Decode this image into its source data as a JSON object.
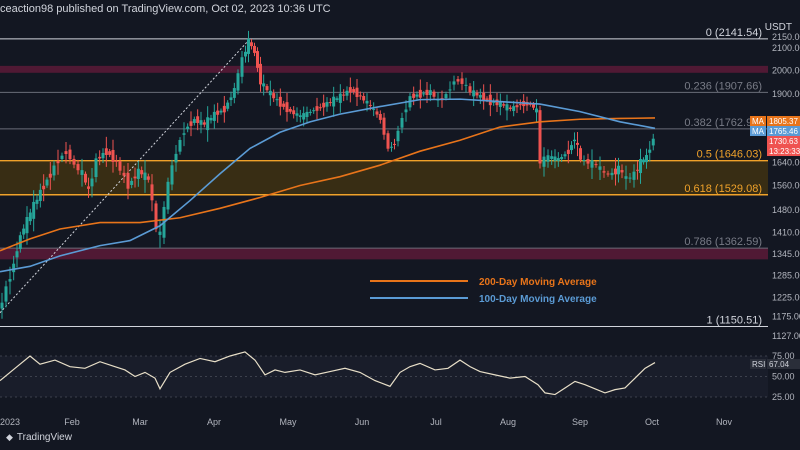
{
  "header": {
    "publisher": "ceaction98 published on TradingView.com, Oct 02, 2023 10:36 UTC"
  },
  "branding": {
    "name": "TradingView",
    "icon": "tradingview-logo-icon"
  },
  "currency": "USDT",
  "colors": {
    "background": "#131722",
    "candle_up": "#26a69a",
    "candle_down": "#ef5350",
    "ma200": "#e8741a",
    "ma100": "#5b9bd5",
    "fib_text": "#787b86",
    "resistance_zone": "#5c1a37",
    "support_zone": "#3f3112",
    "fib_orange": "#f0a22a",
    "rsi_line": "#e8dfc8"
  },
  "chart_data": {
    "type": "candlestick",
    "title": "",
    "xlabel": "",
    "ylabel": "",
    "ylim": [
      1100,
      2200
    ],
    "y_ticks": [
      "2150.00",
      "2100.00",
      "2000.00",
      "1900.00",
      "1805.37",
      "1765.46",
      "1730.63",
      "1640.00",
      "1560.00",
      "1480.00",
      "1410.00",
      "1345.00",
      "1285.00",
      "1225.00",
      "1175.00",
      "1127.00"
    ],
    "x_ticks": [
      "2023",
      "Feb",
      "Mar",
      "Apr",
      "May",
      "Jun",
      "Jul",
      "Aug",
      "Sep",
      "Oct",
      "Nov"
    ],
    "fib_levels": [
      {
        "ratio": "0",
        "price": 2141.54,
        "label": "0 (2141.54)"
      },
      {
        "ratio": "0.236",
        "price": 1907.66,
        "label": "0.236 (1907.66)"
      },
      {
        "ratio": "0.382",
        "price": 1762.97,
        "label": "0.382 (1762.97)"
      },
      {
        "ratio": "0.5",
        "price": 1646.03,
        "label": "0.5 (1646.03)"
      },
      {
        "ratio": "0.618",
        "price": 1529.08,
        "label": "0.618 (1529.08)"
      },
      {
        "ratio": "0.786",
        "price": 1362.59,
        "label": "0.786 (1362.59)"
      },
      {
        "ratio": "1",
        "price": 1150.51,
        "label": "1 (1150.51)"
      }
    ],
    "zones": [
      {
        "name": "resistance",
        "from": 1990,
        "to": 2020
      },
      {
        "name": "support",
        "from": 1529.08,
        "to": 1646.03
      },
      {
        "name": "lower",
        "from": 1330,
        "to": 1362.59
      }
    ],
    "price_badges": [
      {
        "tag": "MA",
        "value": "1805.37",
        "color": "#e8741a"
      },
      {
        "tag": "MA",
        "value": "1765.46",
        "color": "#5b9bd5"
      },
      {
        "tag": "",
        "value": "1730.63",
        "color": "#ef5350"
      },
      {
        "tag": "",
        "value": "13:23:33",
        "color": "#ef5350"
      }
    ],
    "legend": [
      {
        "name": "200-Day Moving Average",
        "color": "#e8741a"
      },
      {
        "name": "100-Day Moving Average",
        "color": "#5b9bd5"
      }
    ],
    "close_path": [
      [
        0,
        1185
      ],
      [
        12,
        1285
      ],
      [
        22,
        1400
      ],
      [
        32,
        1470
      ],
      [
        42,
        1540
      ],
      [
        52,
        1600
      ],
      [
        60,
        1650
      ],
      [
        68,
        1680
      ],
      [
        76,
        1630
      ],
      [
        84,
        1600
      ],
      [
        90,
        1540
      ],
      [
        98,
        1650
      ],
      [
        108,
        1680
      ],
      [
        118,
        1640
      ],
      [
        130,
        1560
      ],
      [
        140,
        1610
      ],
      [
        150,
        1580
      ],
      [
        158,
        1420
      ],
      [
        162,
        1400
      ],
      [
        170,
        1570
      ],
      [
        178,
        1680
      ],
      [
        186,
        1760
      ],
      [
        196,
        1800
      ],
      [
        206,
        1780
      ],
      [
        216,
        1820
      ],
      [
        226,
        1840
      ],
      [
        236,
        1920
      ],
      [
        244,
        2050
      ],
      [
        250,
        2130
      ],
      [
        256,
        2080
      ],
      [
        262,
        1950
      ],
      [
        272,
        1900
      ],
      [
        282,
        1860
      ],
      [
        292,
        1830
      ],
      [
        302,
        1810
      ],
      [
        312,
        1830
      ],
      [
        322,
        1850
      ],
      [
        332,
        1870
      ],
      [
        342,
        1890
      ],
      [
        352,
        1920
      ],
      [
        362,
        1890
      ],
      [
        372,
        1850
      ],
      [
        382,
        1800
      ],
      [
        390,
        1690
      ],
      [
        396,
        1710
      ],
      [
        404,
        1810
      ],
      [
        412,
        1890
      ],
      [
        422,
        1900
      ],
      [
        432,
        1910
      ],
      [
        440,
        1870
      ],
      [
        448,
        1900
      ],
      [
        456,
        1960
      ],
      [
        464,
        1950
      ],
      [
        472,
        1910
      ],
      [
        482,
        1890
      ],
      [
        492,
        1870
      ],
      [
        502,
        1860
      ],
      [
        512,
        1840
      ],
      [
        522,
        1860
      ],
      [
        532,
        1860
      ],
      [
        538,
        1830
      ],
      [
        542,
        1640
      ],
      [
        550,
        1660
      ],
      [
        560,
        1650
      ],
      [
        570,
        1680
      ],
      [
        576,
        1730
      ],
      [
        582,
        1650
      ],
      [
        590,
        1640
      ],
      [
        598,
        1630
      ],
      [
        606,
        1600
      ],
      [
        614,
        1600
      ],
      [
        620,
        1620
      ],
      [
        628,
        1580
      ],
      [
        636,
        1600
      ],
      [
        642,
        1640
      ],
      [
        648,
        1660
      ],
      [
        655,
        1730
      ]
    ],
    "ma200": [
      [
        0,
        1355
      ],
      [
        30,
        1390
      ],
      [
        60,
        1420
      ],
      [
        100,
        1440
      ],
      [
        140,
        1440
      ],
      [
        180,
        1455
      ],
      [
        220,
        1485
      ],
      [
        260,
        1520
      ],
      [
        300,
        1560
      ],
      [
        340,
        1590
      ],
      [
        380,
        1630
      ],
      [
        420,
        1680
      ],
      [
        460,
        1720
      ],
      [
        500,
        1770
      ],
      [
        540,
        1790
      ],
      [
        580,
        1800
      ],
      [
        620,
        1803
      ],
      [
        655,
        1805
      ]
    ],
    "ma100": [
      [
        0,
        1295
      ],
      [
        30,
        1310
      ],
      [
        60,
        1340
      ],
      [
        100,
        1370
      ],
      [
        130,
        1385
      ],
      [
        160,
        1430
      ],
      [
        190,
        1510
      ],
      [
        220,
        1600
      ],
      [
        250,
        1690
      ],
      [
        280,
        1750
      ],
      [
        310,
        1790
      ],
      [
        340,
        1820
      ],
      [
        380,
        1850
      ],
      [
        420,
        1878
      ],
      [
        460,
        1880
      ],
      [
        500,
        1870
      ],
      [
        540,
        1860
      ],
      [
        580,
        1830
      ],
      [
        620,
        1790
      ],
      [
        655,
        1765
      ]
    ],
    "rsi": {
      "label": "RSI",
      "value": "67.04",
      "ylim": [
        10,
        90
      ],
      "y_ticks": [
        "75.00",
        "50.00",
        "25.00"
      ],
      "path": [
        [
          0,
          45
        ],
        [
          15,
          60
        ],
        [
          30,
          75
        ],
        [
          40,
          65
        ],
        [
          55,
          70
        ],
        [
          70,
          62
        ],
        [
          85,
          60
        ],
        [
          100,
          68
        ],
        [
          115,
          62
        ],
        [
          125,
          58
        ],
        [
          135,
          50
        ],
        [
          145,
          55
        ],
        [
          155,
          48
        ],
        [
          160,
          35
        ],
        [
          170,
          55
        ],
        [
          185,
          65
        ],
        [
          200,
          72
        ],
        [
          215,
          68
        ],
        [
          230,
          75
        ],
        [
          245,
          80
        ],
        [
          255,
          70
        ],
        [
          265,
          52
        ],
        [
          275,
          58
        ],
        [
          285,
          55
        ],
        [
          300,
          58
        ],
        [
          315,
          52
        ],
        [
          330,
          56
        ],
        [
          345,
          60
        ],
        [
          360,
          55
        ],
        [
          375,
          45
        ],
        [
          390,
          38
        ],
        [
          400,
          55
        ],
        [
          410,
          62
        ],
        [
          420,
          66
        ],
        [
          435,
          58
        ],
        [
          448,
          60
        ],
        [
          460,
          70
        ],
        [
          470,
          62
        ],
        [
          480,
          56
        ],
        [
          495,
          52
        ],
        [
          510,
          48
        ],
        [
          525,
          50
        ],
        [
          538,
          40
        ],
        [
          545,
          30
        ],
        [
          555,
          28
        ],
        [
          565,
          36
        ],
        [
          575,
          44
        ],
        [
          585,
          40
        ],
        [
          595,
          35
        ],
        [
          605,
          30
        ],
        [
          615,
          34
        ],
        [
          625,
          36
        ],
        [
          635,
          48
        ],
        [
          645,
          60
        ],
        [
          655,
          67
        ]
      ]
    }
  }
}
